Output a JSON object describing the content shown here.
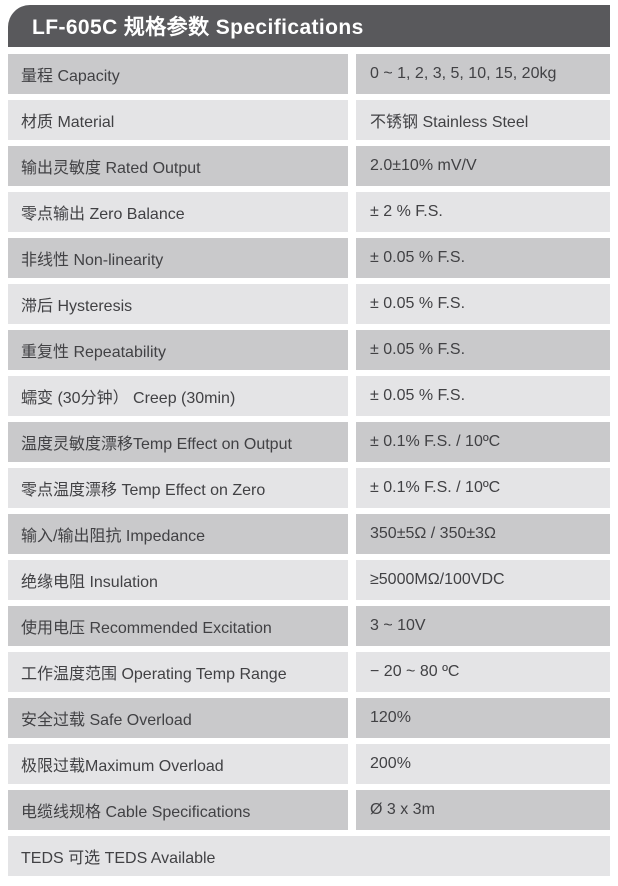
{
  "header": {
    "title": "LF-605C 规格参数 Specifications"
  },
  "colors": {
    "header_bg": "#59595c",
    "header_text": "#ffffff",
    "row_dark": "#c9c9cb",
    "row_light": "#e4e4e6",
    "row_text": "#414144",
    "page_bg": "#ffffff"
  },
  "table": {
    "rows": [
      {
        "label": "量程 Capacity",
        "value": "0 ~ 1, 2, 3, 5, 10, 15, 20kg"
      },
      {
        "label": "材质 Material",
        "value": "不锈钢 Stainless Steel"
      },
      {
        "label": "输出灵敏度 Rated Output",
        "value": "2.0±10% mV/V"
      },
      {
        "label": "零点输出  Zero Balance",
        "value": "± 2 % F.S."
      },
      {
        "label": "非线性 Non-linearity",
        "value": "± 0.05 % F.S."
      },
      {
        "label": "滞后 Hysteresis",
        "value": "± 0.05 % F.S."
      },
      {
        "label": "重复性 Repeatability",
        "value": "± 0.05 % F.S."
      },
      {
        "label": "蠕变 (30分钟） Creep (30min)",
        "value": "± 0.05 % F.S."
      },
      {
        "label": "温度灵敏度漂移Temp Effect on Output",
        "value": "± 0.1% F.S. / 10ºC"
      },
      {
        "label": "零点温度漂移 Temp Effect on Zero",
        "value": "± 0.1% F.S. / 10ºC"
      },
      {
        "label": "输入/输出阻抗 Impedance",
        "value": "350±5Ω / 350±3Ω"
      },
      {
        "label": "绝缘电阻  Insulation",
        "value": "≥5000MΩ/100VDC"
      },
      {
        "label": "使用电压 Recommended Excitation",
        "value": "3 ~ 10V"
      },
      {
        "label": "工作温度范围 Operating Temp  Range",
        "value": "− 20 ~ 80 ºC"
      },
      {
        "label": "安全过载 Safe Overload",
        "value": "120%"
      },
      {
        "label": "极限过载Maximum Overload",
        "value": "200%"
      },
      {
        "label": "电缆线规格 Cable Specifications",
        "value": "Ø 3 x 3m"
      },
      {
        "label": "TEDS 可选 TEDS Available",
        "value": null
      }
    ]
  }
}
